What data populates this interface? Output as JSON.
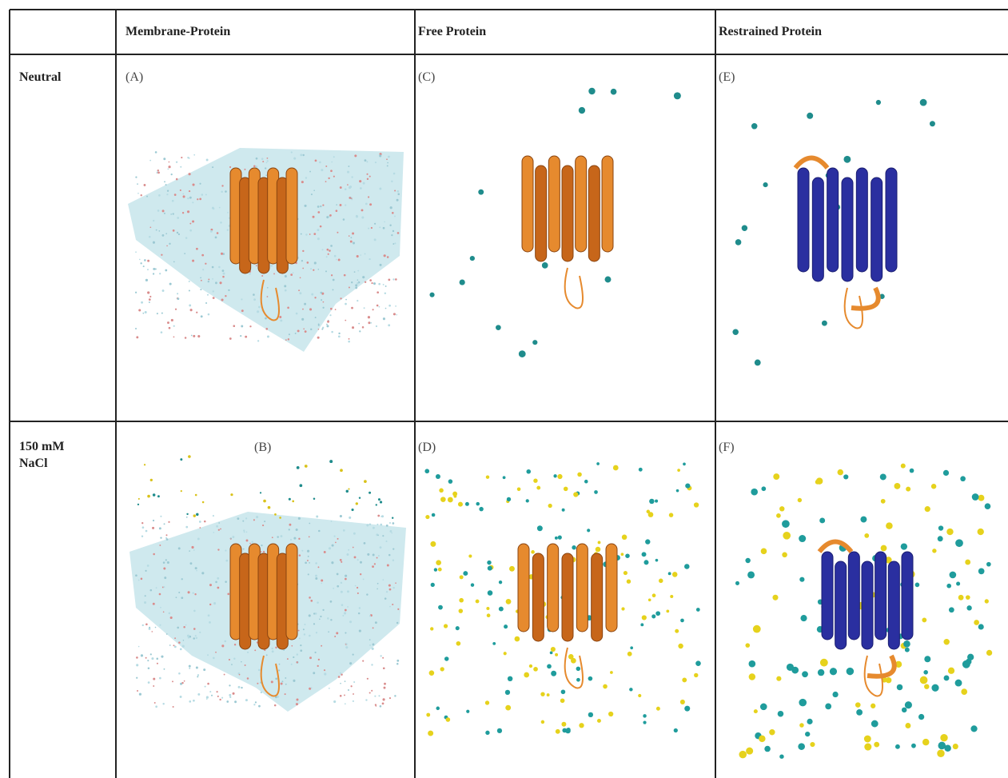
{
  "table": {
    "header": [
      "Membrane-Protein",
      "Free Protein",
      "Restrained Protein"
    ],
    "rows": [
      {
        "label": "Neutral",
        "panels": [
          "(A)",
          "(C)",
          "(E)"
        ]
      },
      {
        "label": "150 mM NaCl",
        "panels": [
          "(B)",
          "(D)",
          "(F)"
        ]
      }
    ]
  }
}
